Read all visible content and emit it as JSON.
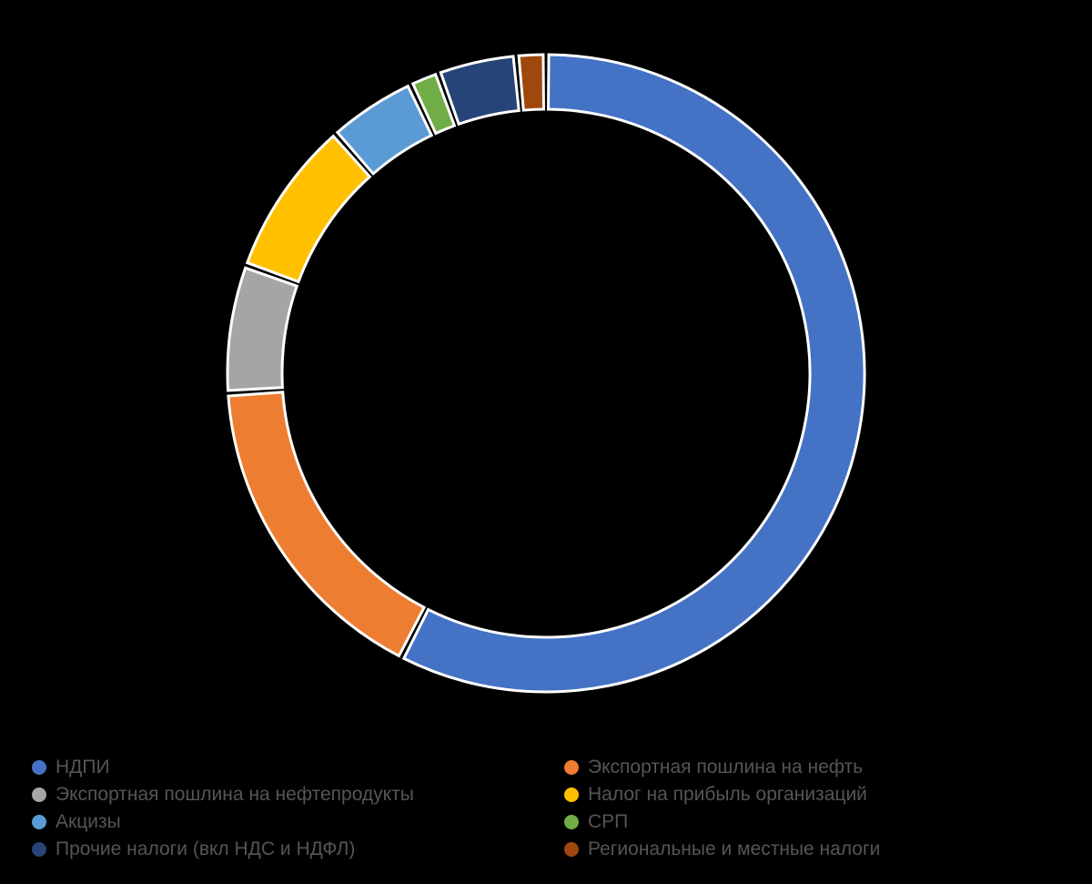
{
  "chart": {
    "type": "donut",
    "background": "#000000",
    "outer_radius": 350,
    "inner_radius": 290,
    "gap_deg": 1.0,
    "stroke": "#ffffff",
    "stroke_width": 3,
    "slices": [
      {
        "label": "НДПИ",
        "value": 57.5,
        "color": "#4472c4"
      },
      {
        "label": "Экспортная пошлина на нефть",
        "value": 16.5,
        "color": "#ed7d31"
      },
      {
        "label": "Экспортная пошлина на нефтепродукты",
        "value": 6.5,
        "color": "#a5a5a5"
      },
      {
        "label": "Налог на прибыль организаций",
        "value": 8.0,
        "color": "#ffc000"
      },
      {
        "label": "Акцизы",
        "value": 4.5,
        "color": "#5b9bd5"
      },
      {
        "label": "СРП",
        "value": 1.5,
        "color": "#70ad47"
      },
      {
        "label": "Прочие налоги (вкл НДС и НДФЛ)",
        "value": 4.0,
        "color": "#264478"
      },
      {
        "label": "Региональные и местные налоги",
        "value": 1.5,
        "color": "#9e480e"
      }
    ]
  },
  "legend": {
    "left": [
      {
        "label": "НДПИ",
        "color": "#4472c4"
      },
      {
        "label": "Экспортная пошлина на нефтепродукты",
        "color": "#a5a5a5"
      },
      {
        "label": "Акцизы",
        "color": "#5b9bd5"
      },
      {
        "label": "Прочие налоги (вкл НДС и НДФЛ)",
        "color": "#264478"
      }
    ],
    "right": [
      {
        "label": "Экспортная пошлина на нефть",
        "color": "#ed7d31"
      },
      {
        "label": "Налог на прибыль организаций",
        "color": "#ffc000"
      },
      {
        "label": "СРП",
        "color": "#70ad47"
      },
      {
        "label": "Региональные и местные налоги",
        "color": "#9e480e"
      }
    ],
    "label_color": "#555555",
    "label_fontsize": 21,
    "marker_size": 16
  }
}
